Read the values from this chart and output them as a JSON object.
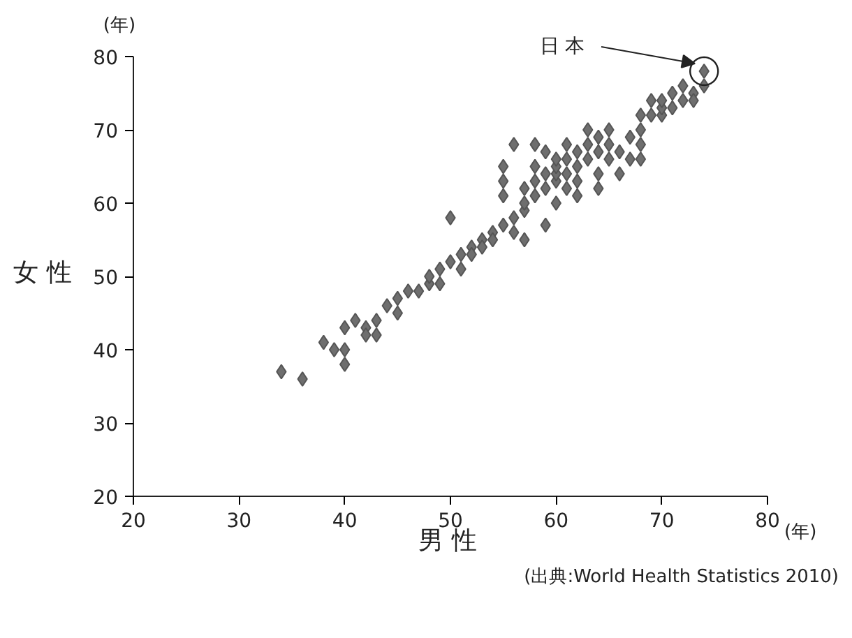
{
  "chart_data": {
    "type": "scatter",
    "xlabel": "男 性",
    "ylabel": "女 性",
    "marker": "diamond",
    "grid": false,
    "xlim": [
      20,
      80
    ],
    "ylim": [
      20,
      80
    ],
    "xticks": [
      20,
      30,
      40,
      50,
      60,
      70,
      80
    ],
    "yticks": [
      20,
      30,
      40,
      50,
      60,
      70,
      80
    ],
    "series": [
      {
        "color": "#6e6e6e",
        "x": [
          34,
          36,
          38,
          39,
          40,
          40,
          40,
          41,
          42,
          42,
          43,
          43,
          44,
          45,
          45,
          46,
          47,
          48,
          48,
          49,
          49,
          50,
          50,
          51,
          51,
          52,
          52,
          53,
          53,
          54,
          54,
          55,
          55,
          55,
          55,
          56,
          56,
          56,
          57,
          57,
          57,
          57,
          58,
          58,
          58,
          58,
          59,
          59,
          59,
          59,
          60,
          60,
          60,
          60,
          60,
          61,
          61,
          61,
          61,
          62,
          62,
          62,
          62,
          63,
          63,
          63,
          64,
          64,
          64,
          64,
          65,
          65,
          65,
          66,
          66,
          67,
          67,
          68,
          68,
          68,
          68,
          69,
          69,
          70,
          70,
          70,
          71,
          71,
          72,
          72,
          73,
          73,
          74,
          74
        ],
        "values": [
          37,
          36,
          41,
          40,
          40,
          38,
          43,
          44,
          43,
          42,
          42,
          44,
          46,
          45,
          47,
          48,
          48,
          49,
          50,
          51,
          49,
          52,
          58,
          51,
          53,
          54,
          53,
          55,
          54,
          56,
          55,
          57,
          61,
          65,
          63,
          56,
          58,
          68,
          59,
          60,
          55,
          62,
          61,
          63,
          65,
          68,
          62,
          64,
          67,
          57,
          63,
          64,
          65,
          66,
          60,
          62,
          64,
          66,
          68,
          63,
          65,
          67,
          61,
          66,
          68,
          70,
          67,
          69,
          64,
          62,
          66,
          68,
          70,
          64,
          67,
          69,
          66,
          70,
          72,
          66,
          68,
          72,
          74,
          72,
          73,
          74,
          73,
          75,
          74,
          76,
          75,
          74,
          76,
          78
        ]
      }
    ],
    "annotations": [
      {
        "text": "日 本",
        "x": 74,
        "y": 78
      },
      "(年)",
      "(年)",
      "(出典:World Health Statistics 2010)"
    ]
  }
}
